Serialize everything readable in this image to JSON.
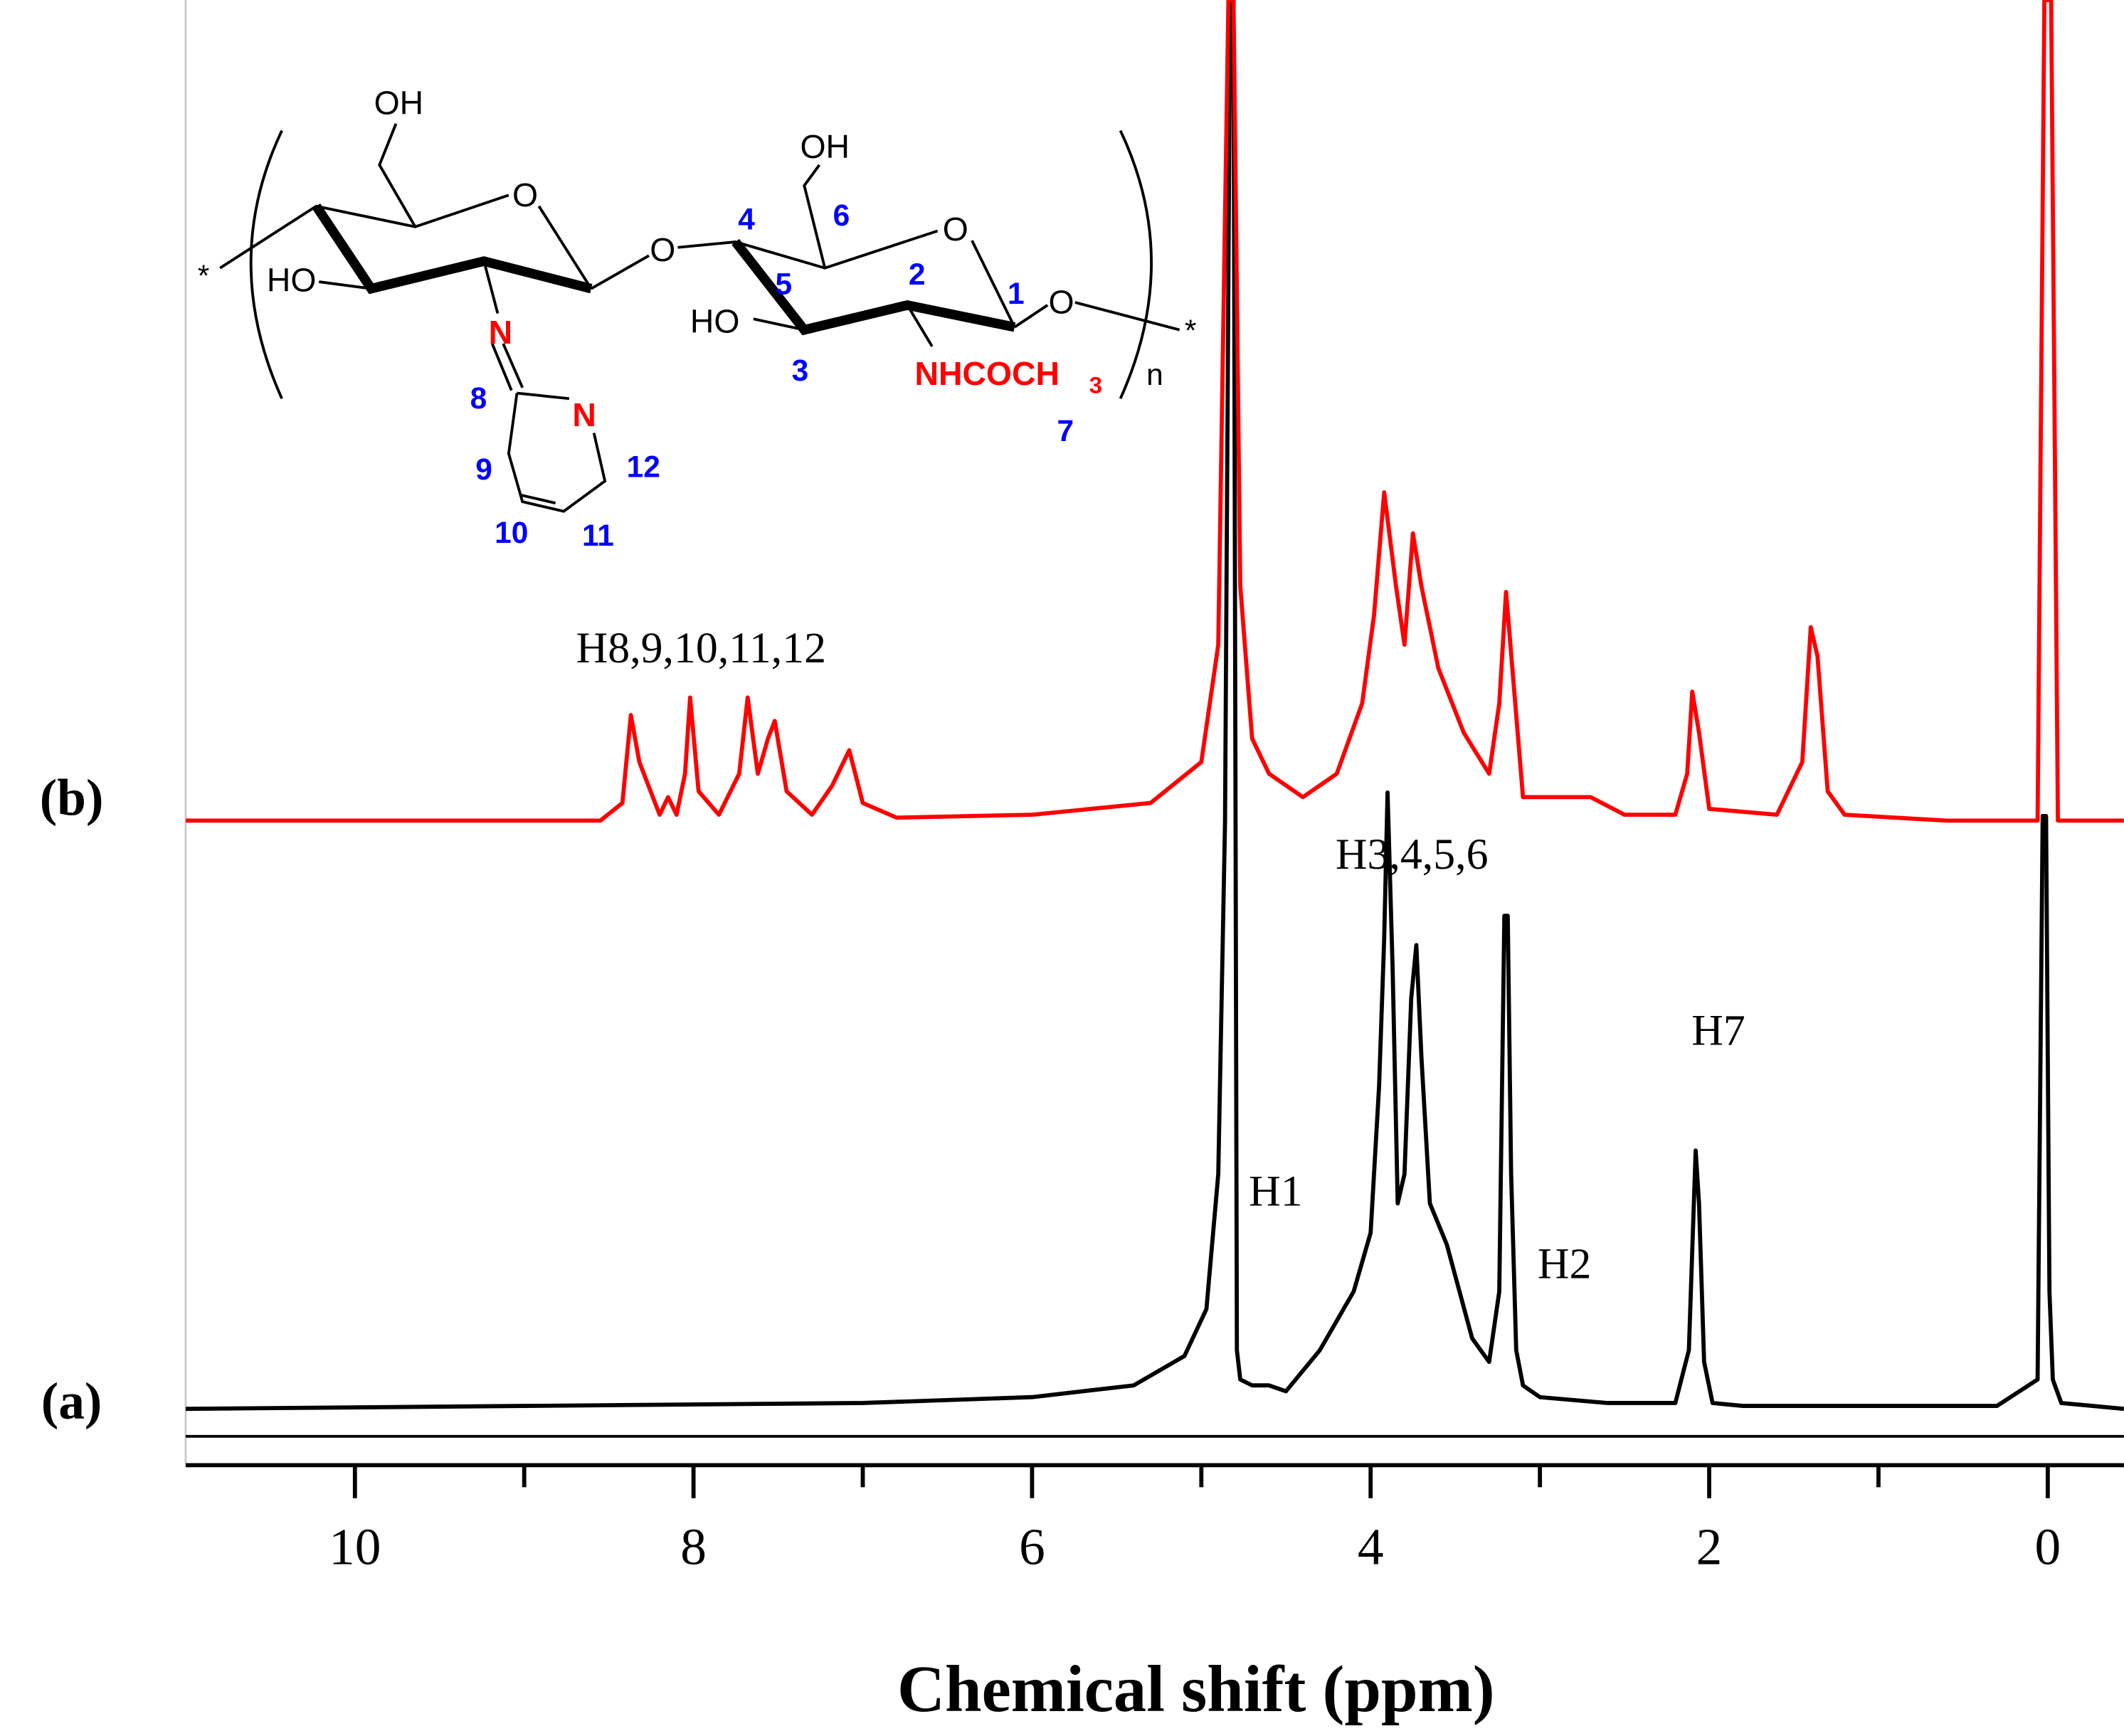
{
  "chart_data": [
    {
      "type": "line",
      "label": "(a)",
      "color": "#000000",
      "ylim": [
        0,
        240
      ],
      "xlim": [
        11,
        -0.45
      ],
      "xticks": [
        10,
        8,
        6,
        4,
        2,
        0
      ],
      "xticks_minor": [
        9,
        7,
        5,
        3,
        1
      ],
      "xlabel": "Chemical shift (ppm)",
      "x": [
        11,
        9,
        7,
        6,
        5.4,
        5.1,
        4.97,
        4.9,
        4.86,
        4.83,
        4.81,
        4.79,
        4.77,
        4.7,
        4.6,
        4.5,
        4.3,
        4.1,
        4.0,
        3.95,
        3.92,
        3.9,
        3.87,
        3.84,
        3.8,
        3.76,
        3.73,
        3.7,
        3.65,
        3.55,
        3.4,
        3.3,
        3.24,
        3.21,
        3.19,
        3.17,
        3.14,
        3.1,
        3.0,
        2.6,
        2.2,
        2.12,
        2.08,
        2.06,
        2.03,
        1.98,
        1.8,
        1.0,
        0.3,
        0.06,
        0.03,
        0.01,
        -0.01,
        -0.03,
        -0.08,
        -0.45
      ],
      "values": [
        0,
        0.5,
        1,
        2,
        4,
        9,
        17,
        40,
        100,
        240,
        240,
        10,
        5,
        4,
        4,
        3,
        10,
        20,
        30,
        55,
        80,
        105,
        75,
        35,
        40,
        70,
        79,
        60,
        35,
        28,
        12,
        8,
        20,
        84,
        84,
        40,
        10,
        4,
        2,
        1,
        1,
        10,
        44,
        35,
        8,
        1,
        0.5,
        0.5,
        0.5,
        5,
        101,
        101,
        20,
        5,
        1,
        0
      ],
      "annotations": [
        "H8,9,10,11,12",
        "H3,4,5,6",
        "H1",
        "H2",
        "H7"
      ],
      "structure_labels": [
        "OH",
        "O",
        "HO",
        "N",
        "8",
        "N",
        "9",
        "12",
        "10",
        "11",
        "O",
        "4",
        "6",
        "OH",
        "O",
        "5",
        "2",
        "1",
        "O",
        "HO",
        "3",
        "NHCOCH",
        "3",
        "n",
        "*",
        "*",
        "7"
      ]
    },
    {
      "type": "line",
      "label": "(b)",
      "color": "#ff0000",
      "ylim": [
        0,
        140
      ],
      "x": [
        11,
        9,
        8.55,
        8.42,
        8.37,
        8.32,
        8.2,
        8.15,
        8.1,
        8.05,
        8.02,
        7.97,
        7.85,
        7.73,
        7.68,
        7.62,
        7.56,
        7.52,
        7.45,
        7.3,
        7.18,
        7.08,
        7.0,
        6.8,
        6,
        5.3,
        5.0,
        4.9,
        4.84,
        4.81,
        4.77,
        4.7,
        4.6,
        4.4,
        4.2,
        4.05,
        3.98,
        3.92,
        3.85,
        3.8,
        3.75,
        3.7,
        3.6,
        3.45,
        3.3,
        3.24,
        3.2,
        3.16,
        3.1,
        2.9,
        2.7,
        2.5,
        2.2,
        2.13,
        2.1,
        2.06,
        2.0,
        1.6,
        1.45,
        1.4,
        1.36,
        1.3,
        1.2,
        0.6,
        0.06,
        0.02,
        -0.02,
        -0.06,
        -0.45
      ],
      "values": [
        0,
        0,
        0,
        3,
        18,
        10,
        1,
        4,
        1,
        8,
        21,
        5,
        1,
        8,
        21,
        8,
        14,
        17,
        5,
        1,
        6,
        12,
        3,
        0.5,
        1,
        3,
        10,
        30,
        140,
        140,
        40,
        14,
        8,
        4,
        8,
        20,
        35,
        56,
        40,
        30,
        49,
        40,
        26,
        15,
        8,
        20,
        39,
        25,
        4,
        4,
        4,
        1,
        1,
        8,
        22,
        15,
        2,
        1,
        10,
        33,
        28,
        5,
        1,
        0,
        0,
        140,
        140,
        0,
        0
      ]
    }
  ]
}
